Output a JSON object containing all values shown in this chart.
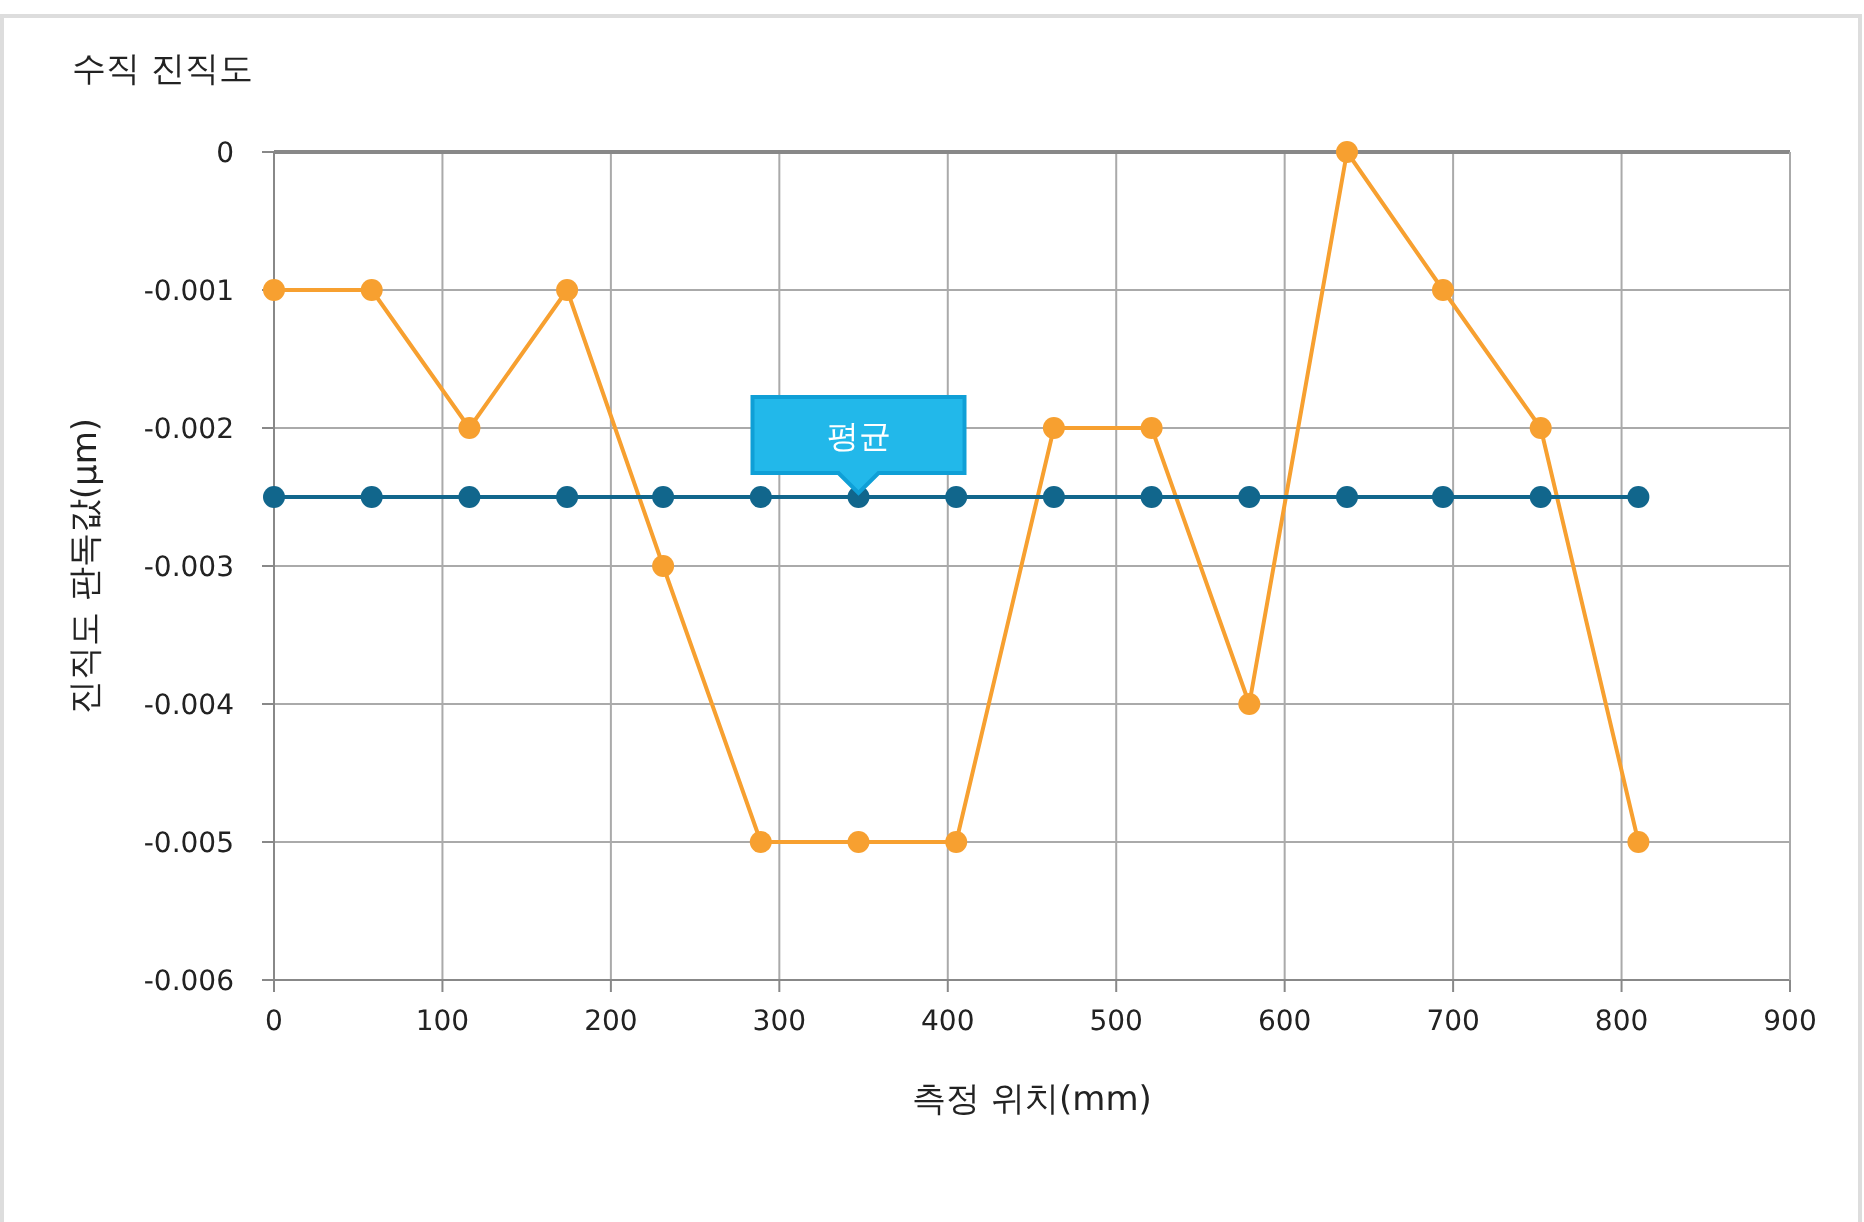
{
  "chart_data": {
    "type": "line",
    "title": "수직 진직도",
    "xlabel": "측정 위치(mm)",
    "ylabel": "진직도 판독값(μm)",
    "x": [
      0,
      58,
      116,
      174,
      231,
      289,
      347,
      405,
      463,
      521,
      579,
      637,
      694,
      752,
      810
    ],
    "series": [
      {
        "color": "#f7a030",
        "values": [
          -0.001,
          -0.001,
          -0.002,
          -0.001,
          -0.003,
          -0.005,
          -0.005,
          -0.005,
          -0.002,
          -0.002,
          -0.004,
          0,
          -0.001,
          -0.002,
          -0.005
        ]
      },
      {
        "color": "#11668c",
        "values": [
          -0.0025,
          -0.0025,
          -0.0025,
          -0.0025,
          -0.0025,
          -0.0025,
          -0.0025,
          -0.0025,
          -0.0025,
          -0.0025,
          -0.0025,
          -0.0025,
          -0.0025,
          -0.0025,
          -0.0025
        ]
      }
    ],
    "xlim": [
      0,
      900
    ],
    "xticks": [
      0,
      100,
      200,
      300,
      400,
      500,
      600,
      700,
      800,
      900
    ],
    "ylim": [
      -0.006,
      0
    ],
    "yticks": [
      0,
      -0.001,
      -0.002,
      -0.003,
      -0.004,
      -0.005,
      -0.006
    ],
    "grid": true,
    "marker": "circle",
    "line_style": "solid",
    "annotations": [
      {
        "text": "평균",
        "x": 347,
        "y": -0.0025
      }
    ]
  }
}
